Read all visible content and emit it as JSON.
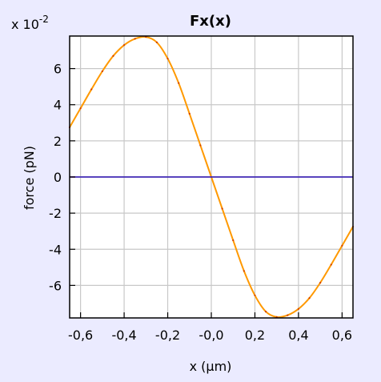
{
  "figure": {
    "background": "#ebebff",
    "plot_background": "#ffffff"
  },
  "chart_data": {
    "type": "line",
    "title": "Fx(x)",
    "xlabel": "x (µm)",
    "ylabel": "force (pN)",
    "y_multiplier_label": "x 10",
    "y_multiplier_exponent": "-2",
    "xlim": [
      -0.65,
      0.65
    ],
    "ylim": [
      -7.8,
      7.8
    ],
    "grid": true,
    "x_ticks": [
      -0.6,
      -0.4,
      -0.2,
      0.0,
      0.2,
      0.4,
      0.6
    ],
    "x_tick_labels": [
      "-0,6",
      "-0,4",
      "-0,2",
      "-0,0",
      "0,2",
      "0,4",
      "0,6"
    ],
    "y_ticks": [
      6,
      4,
      2,
      0,
      -2,
      -4,
      -6
    ],
    "y_tick_labels": [
      "6",
      "4",
      "2",
      "0",
      "-2",
      "-4",
      "-6"
    ],
    "series": [
      {
        "color": "#ff9900",
        "x": [
          -0.65,
          -0.6,
          -0.55,
          -0.5,
          -0.45,
          -0.4,
          -0.35,
          -0.3,
          -0.25,
          -0.2,
          -0.15,
          -0.1,
          -0.05,
          0.0,
          0.05,
          0.1,
          0.15,
          0.2,
          0.25,
          0.3,
          0.35,
          0.4,
          0.45,
          0.5,
          0.55,
          0.6,
          0.65
        ],
        "y": [
          2.75,
          3.8,
          4.85,
          5.85,
          6.7,
          7.3,
          7.65,
          7.75,
          7.45,
          6.55,
          5.2,
          3.5,
          1.75,
          0.0,
          -1.75,
          -3.5,
          -5.2,
          -6.55,
          -7.45,
          -7.75,
          -7.65,
          -7.3,
          -6.7,
          -5.85,
          -4.85,
          -3.8,
          -2.75
        ]
      },
      {
        "color": "#a0003c",
        "x": [
          -0.65,
          0.65
        ],
        "y": [
          0.0,
          0.0
        ]
      },
      {
        "color": "#3333cc",
        "x": [
          -0.65,
          0.65
        ],
        "y": [
          0.0,
          0.0
        ]
      }
    ]
  }
}
